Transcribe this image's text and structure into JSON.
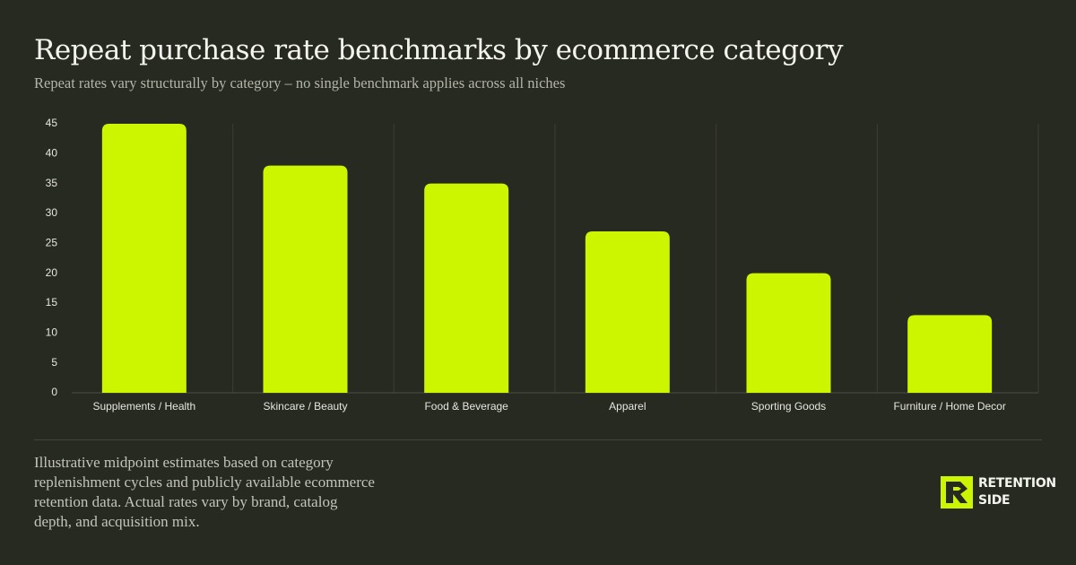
{
  "chart_data": {
    "type": "bar",
    "title": "Repeat purchase rate benchmarks by ecommerce category",
    "subtitle": "Repeat rates vary structurally by category – no single benchmark applies across all niches",
    "categories": [
      "Supplements / Health",
      "Skincare / Beauty",
      "Food & Beverage",
      "Apparel",
      "Sporting Goods",
      "Furniture / Home Decor"
    ],
    "values": [
      45,
      38,
      35,
      27,
      20,
      13
    ],
    "color": "#ccf500",
    "ylim": [
      0,
      45
    ],
    "yticks": [
      0,
      5,
      10,
      15,
      20,
      25,
      30,
      35,
      40,
      45
    ],
    "grid": false
  },
  "footnote": "Illustrative midpoint estimates based on category replenishment cycles and publicly available ecommerce retention data. Actual rates vary by brand, catalog depth, and acquisition mix.",
  "logo": {
    "line1": "RETENTION",
    "line2": "SIDE"
  }
}
